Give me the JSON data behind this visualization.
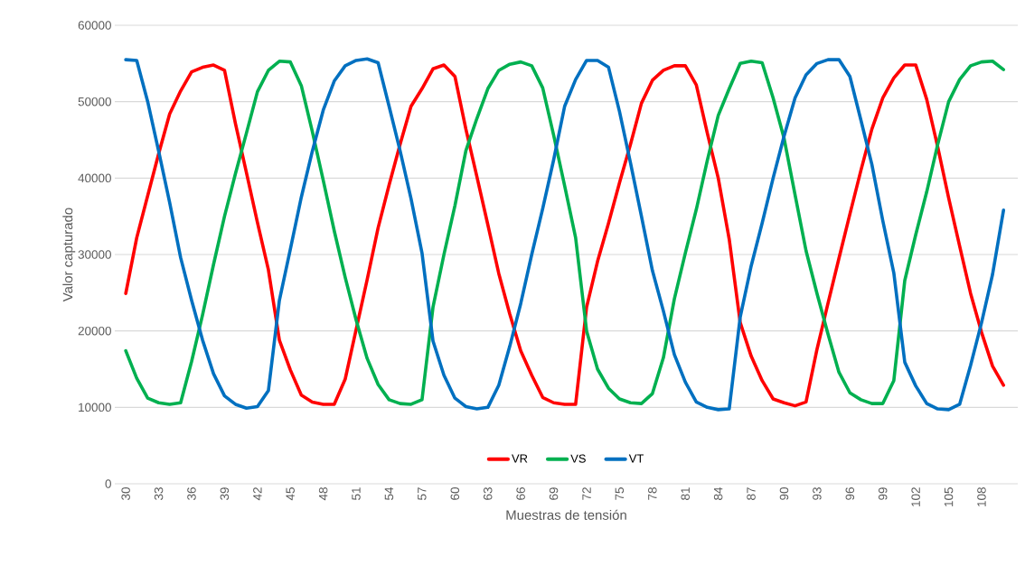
{
  "chart_data": {
    "type": "line",
    "xlabel": "Muestras de tensión",
    "ylabel": "Valor capturado",
    "categories": [
      "30",
      null,
      null,
      "33",
      null,
      null,
      "36",
      null,
      null,
      "39",
      null,
      null,
      "42",
      null,
      null,
      "45",
      null,
      null,
      "48",
      null,
      null,
      "51",
      null,
      null,
      "54",
      null,
      null,
      "57",
      null,
      null,
      "60",
      null,
      null,
      "63",
      null,
      null,
      "66",
      null,
      null,
      "69",
      null,
      null,
      "72",
      null,
      null,
      "75",
      null,
      null,
      "78",
      null,
      null,
      "81",
      null,
      null,
      "84",
      null,
      null,
      "87",
      null,
      null,
      "90",
      null,
      null,
      "93",
      null,
      null,
      "96",
      null,
      null,
      "99",
      null,
      null,
      "102",
      null,
      null,
      "105",
      null,
      null,
      "108",
      null,
      null
    ],
    "ylim": [
      0,
      60000
    ],
    "yticks": [
      0,
      10000,
      20000,
      30000,
      40000,
      50000,
      60000
    ],
    "grid": "y",
    "legend": "bottom",
    "marker": "none",
    "line_style": "solid",
    "series": [
      {
        "name": "VR",
        "color": "#ff0000",
        "values": [
          24900,
          32200,
          37700,
          43200,
          48400,
          51400,
          53900,
          54500,
          54800,
          54100,
          47100,
          40700,
          34200,
          28000,
          18800,
          14900,
          11600,
          10700,
          10400,
          10400,
          13700,
          20200,
          26700,
          33500,
          39100,
          44400,
          49400,
          51700,
          54300,
          54800,
          53300,
          46400,
          40200,
          33900,
          27500,
          22200,
          17400,
          14200,
          11300,
          10600,
          10400,
          10400,
          23100,
          29100,
          34100,
          39400,
          44400,
          49800,
          52800,
          54100,
          54700,
          54700,
          52200,
          45900,
          40000,
          32000,
          21100,
          16700,
          13500,
          11100,
          10600,
          10200,
          10700,
          17600,
          23600,
          29500,
          35300,
          41000,
          46400,
          50500,
          53100,
          54800,
          54800,
          50300,
          44100,
          37400,
          31100,
          24900,
          19800,
          15400,
          12900
        ]
      },
      {
        "name": "VS",
        "color": "#00b050",
        "values": [
          17400,
          13800,
          11200,
          10600,
          10400,
          10600,
          16000,
          22100,
          28700,
          35000,
          40600,
          45900,
          51300,
          54100,
          55300,
          55200,
          52100,
          46100,
          39700,
          33100,
          27000,
          21400,
          16400,
          13000,
          11000,
          10500,
          10400,
          11000,
          23100,
          30000,
          36400,
          43600,
          47800,
          51700,
          54100,
          54900,
          55200,
          54700,
          51800,
          45600,
          39000,
          32200,
          20000,
          15000,
          12500,
          11100,
          10600,
          10500,
          11800,
          16500,
          24200,
          30200,
          35900,
          42300,
          48200,
          51700,
          55000,
          55300,
          55100,
          50500,
          45200,
          37800,
          30500,
          24900,
          19600,
          14600,
          11900,
          11000,
          10500,
          10500,
          13500,
          26600,
          32600,
          38200,
          44400,
          50000,
          52900,
          54700,
          55200,
          55300,
          54200
        ]
      },
      {
        "name": "VT",
        "color": "#0070c0",
        "values": [
          55500,
          55400,
          50000,
          43500,
          36800,
          29600,
          24000,
          18800,
          14400,
          11500,
          10400,
          9900,
          10100,
          12200,
          24000,
          30700,
          37500,
          43500,
          48900,
          52700,
          54700,
          55400,
          55600,
          55100,
          49400,
          43600,
          37300,
          30200,
          18700,
          14200,
          11200,
          10100,
          9800,
          10000,
          12900,
          18000,
          23600,
          30000,
          36000,
          42400,
          49400,
          52900,
          55400,
          55400,
          54500,
          48700,
          42000,
          35000,
          27900,
          22600,
          16900,
          13300,
          10700,
          10000,
          9700,
          9800,
          21800,
          28500,
          34100,
          40000,
          45500,
          50500,
          53500,
          55000,
          55500,
          55500,
          53300,
          47600,
          41800,
          34400,
          27600,
          15900,
          12800,
          10500,
          9800,
          9700,
          10400,
          15500,
          21100,
          27400,
          35800
        ]
      }
    ]
  }
}
